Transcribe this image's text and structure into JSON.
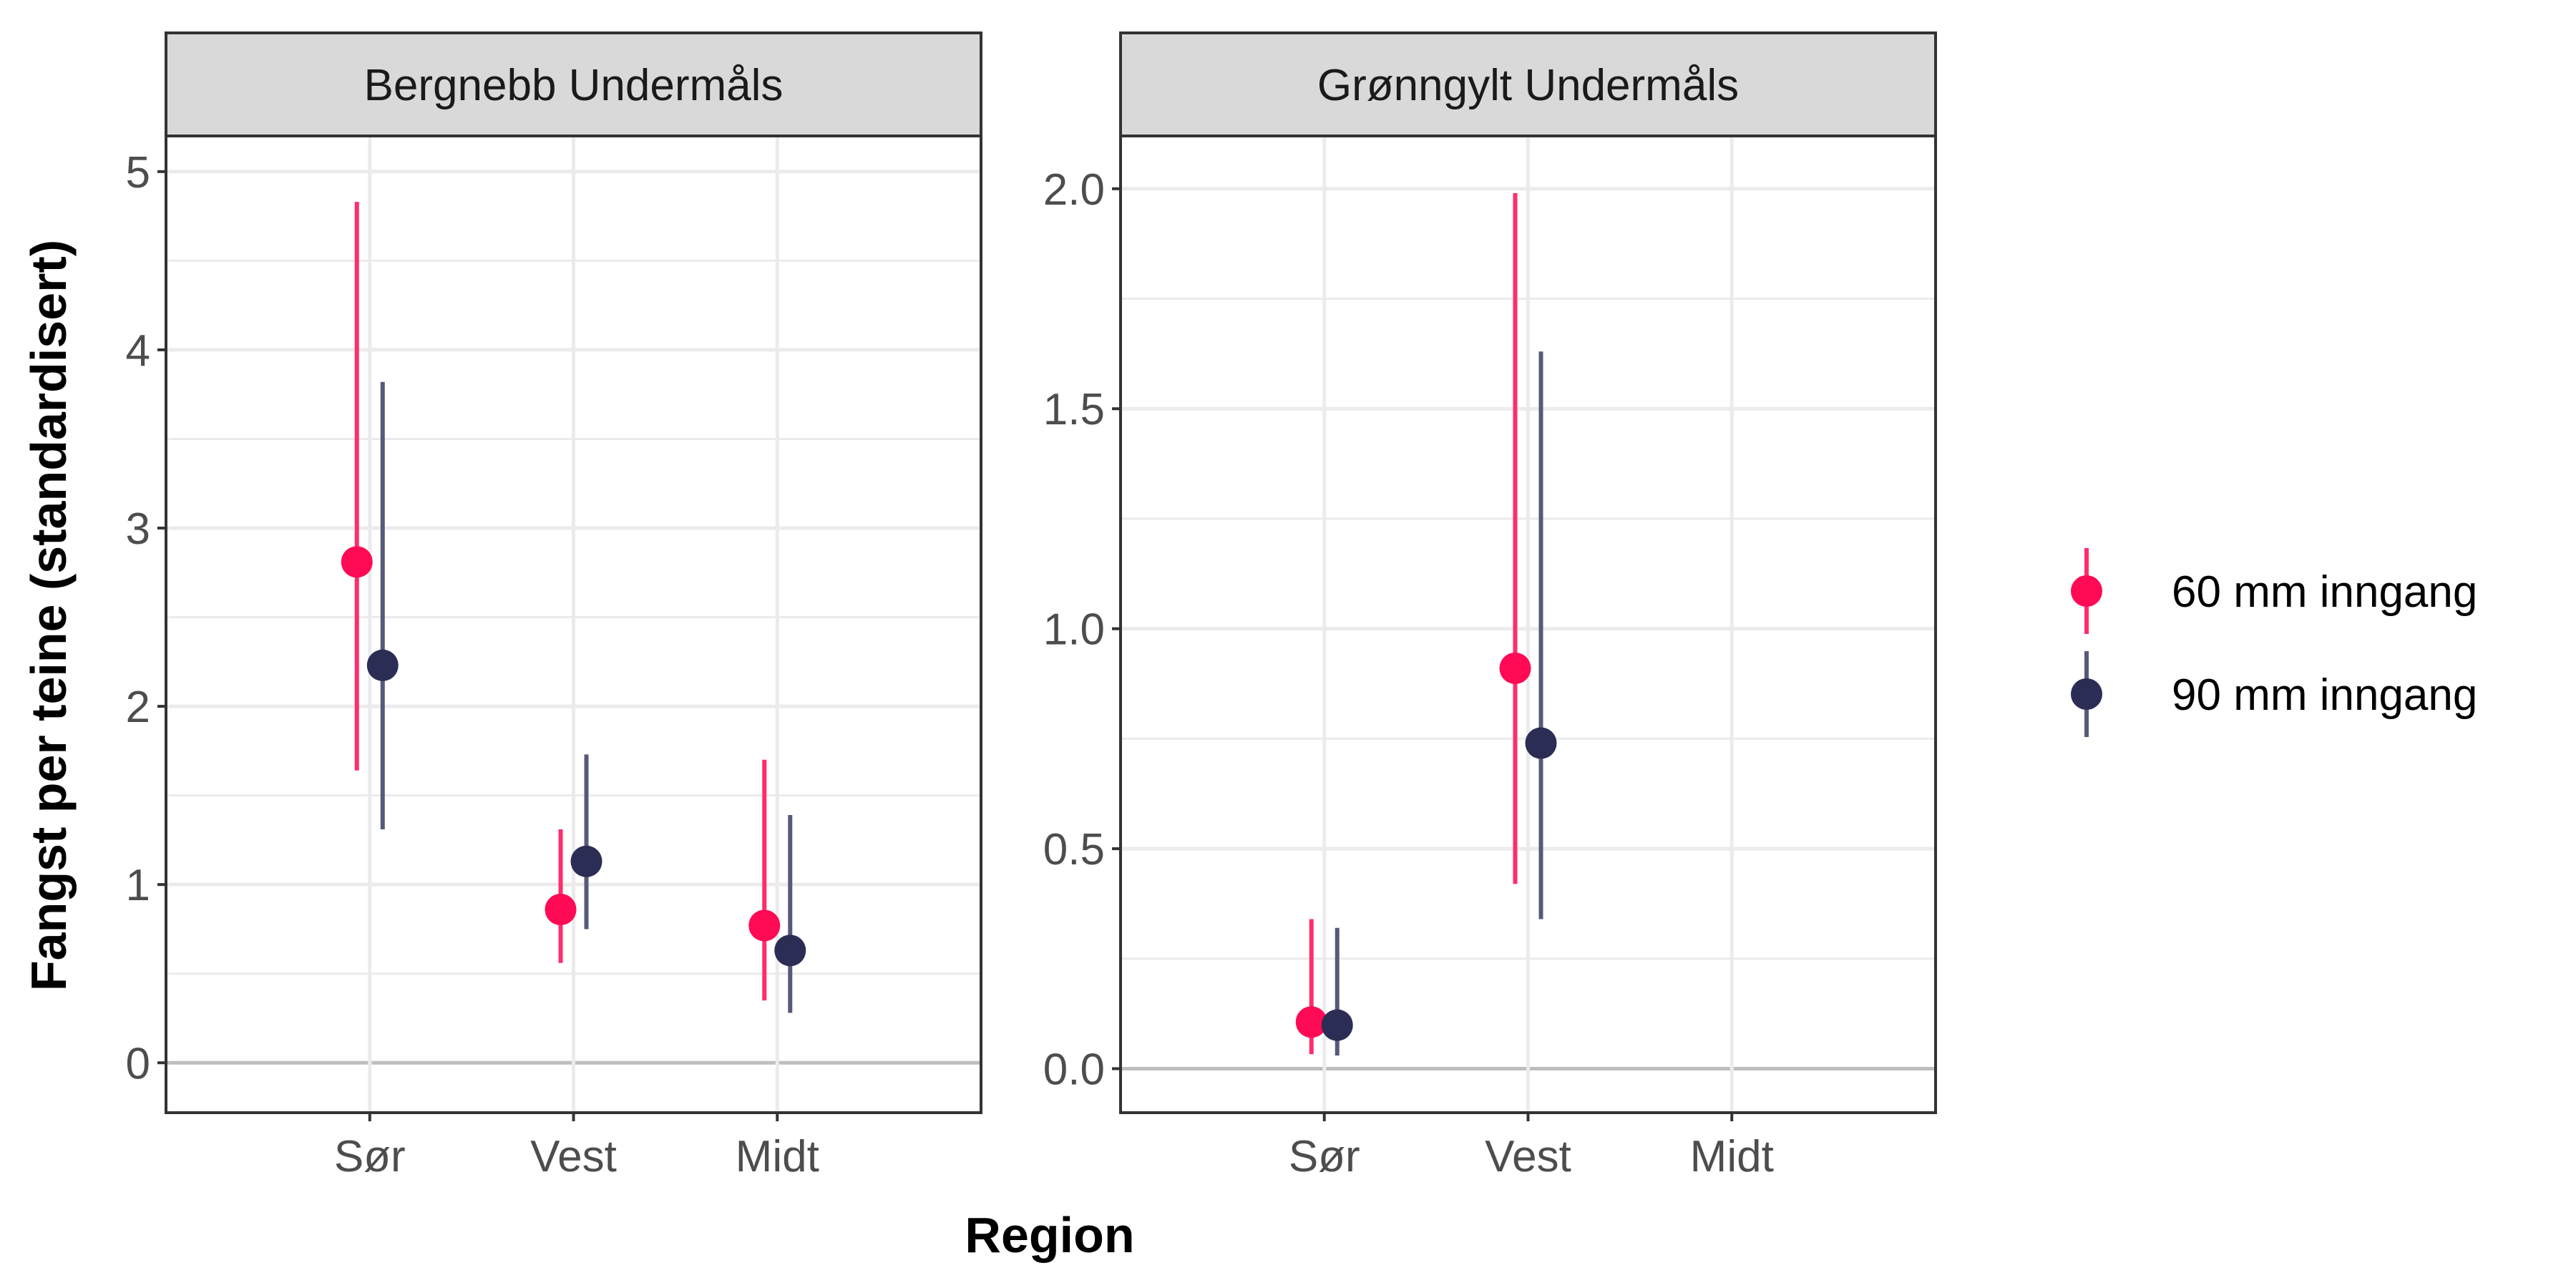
{
  "chart_data": [
    {
      "type": "scatter",
      "title": "Bergnebb Undermåls",
      "xlabel": "Region",
      "ylabel": "Fangst per teine (standardisert)",
      "categories": [
        "Sør",
        "Vest",
        "Midt"
      ],
      "yticks": [
        "0",
        "1",
        "2",
        "3",
        "4",
        "5"
      ],
      "ylim": [
        -0.28,
        5.2
      ],
      "grid": true,
      "series": [
        {
          "name": "60 mm inngang",
          "values": [
            2.81,
            0.86,
            0.77
          ],
          "lower": [
            1.64,
            0.56,
            0.35
          ],
          "upper": [
            4.83,
            1.31,
            1.7
          ]
        },
        {
          "name": "90 mm inngang",
          "values": [
            2.23,
            1.13,
            0.63
          ],
          "lower": [
            1.31,
            0.75,
            0.28
          ],
          "upper": [
            3.82,
            1.73,
            1.39
          ]
        }
      ]
    },
    {
      "type": "scatter",
      "title": "Grønngylt Undermåls",
      "xlabel": "Region",
      "ylabel": "Fangst per teine (standardisert)",
      "categories": [
        "Sør",
        "Vest",
        "Midt"
      ],
      "yticks": [
        "0.0",
        "0.5",
        "1.0",
        "1.5",
        "2.0"
      ],
      "ylim": [
        -0.1,
        2.12
      ],
      "grid": true,
      "series": [
        {
          "name": "60 mm inngang",
          "values": [
            0.106,
            0.91,
            null
          ],
          "lower": [
            0.033,
            0.42,
            null
          ],
          "upper": [
            0.34,
            1.99,
            null
          ]
        },
        {
          "name": "90 mm inngang",
          "values": [
            0.099,
            0.74,
            null
          ],
          "lower": [
            0.03,
            0.34,
            null
          ],
          "upper": [
            0.32,
            1.63,
            null
          ]
        }
      ]
    }
  ],
  "axes": {
    "xlabel": "Region",
    "ylabel": "Fangst per teine (standardisert)"
  },
  "legend": {
    "placement": "right",
    "items": [
      {
        "label": "60 mm inngang",
        "color": "#FF0A54",
        "bar_color": "#FF2D6B"
      },
      {
        "label": "90 mm inngang",
        "color": "#2B2D55",
        "bar_color": "#555A7A"
      }
    ]
  }
}
